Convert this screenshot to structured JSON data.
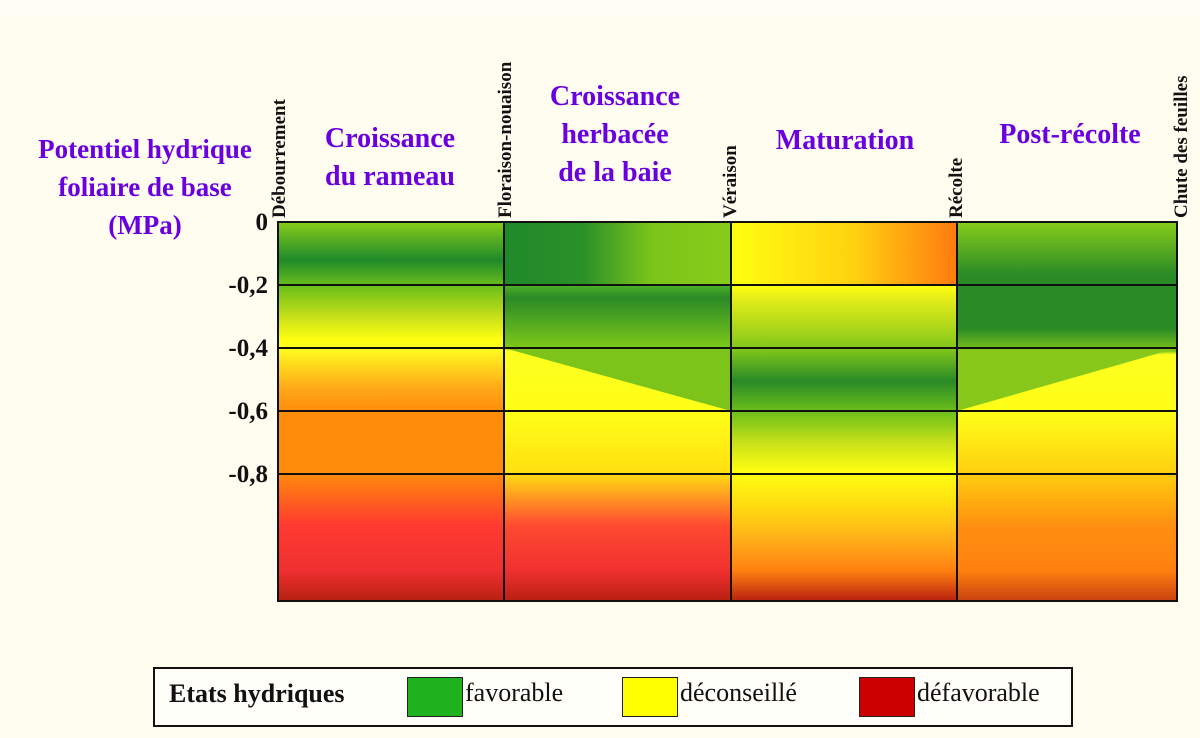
{
  "y_axis": {
    "title_lines": [
      "Potentiel hydrique",
      "foliaire de base",
      "(MPa)"
    ],
    "ticks": [
      "0",
      "-0,2",
      "-0,4",
      "-0,6",
      "-0,8"
    ]
  },
  "stages": [
    "Débourrement",
    "Floraison-nouaison",
    "Véraison",
    "Récolte",
    "Chute des feuilles"
  ],
  "phases": [
    {
      "lines": [
        "Croissance",
        "du rameau"
      ]
    },
    {
      "lines": [
        "Croissance",
        "herbacée",
        "de la baie"
      ]
    },
    {
      "lines": [
        "Maturation"
      ]
    },
    {
      "lines": [
        "Post-récolte"
      ]
    }
  ],
  "colors": {
    "favorable": "#1fb21f",
    "deconseille": "#ffff00",
    "defavorable": "#cc0000",
    "title_purple": "#6a00e0"
  },
  "legend": {
    "title": "Etats hydriques",
    "items": [
      {
        "label": "favorable",
        "color": "#1fb21f"
      },
      {
        "label": "déconseillé",
        "color": "#ffff00"
      },
      {
        "label": "défavorable",
        "color": "#cc0000"
      }
    ]
  }
}
